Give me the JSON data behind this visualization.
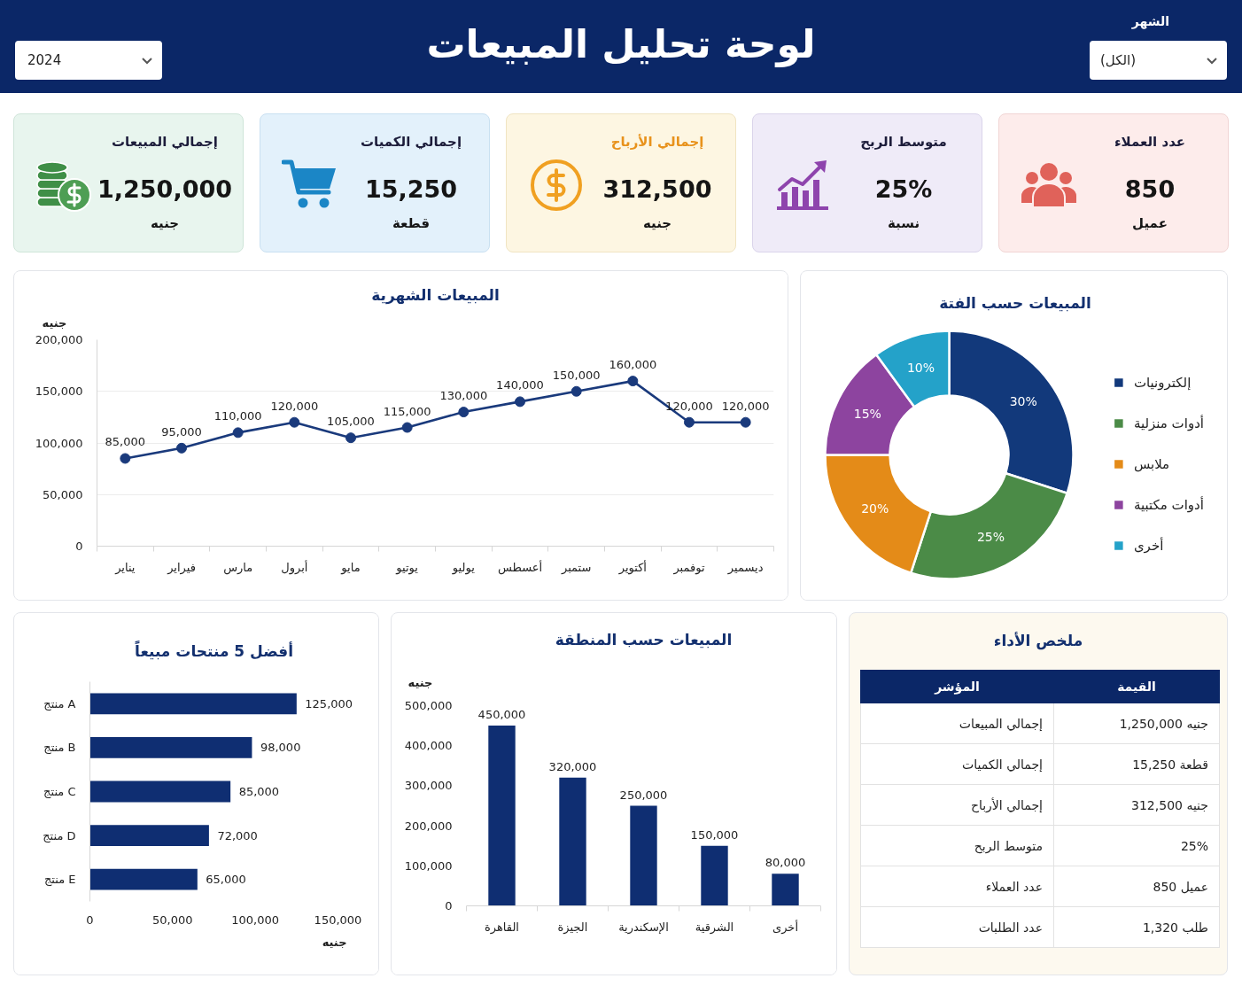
{
  "chart_data": [
    {
      "type": "other",
      "title": "لوحة تحليل المبيعات",
      "annotations": [
        "الشهر",
        "(الكل)",
        "2024"
      ]
    },
    {
      "type": "other",
      "title": "عدد العملاء",
      "annotations": [
        "850",
        "عميل"
      ]
    },
    {
      "type": "other",
      "title": "متوسط الربح",
      "annotations": [
        "25%",
        "نسبة"
      ]
    },
    {
      "type": "other",
      "title": "إجمالي الأرباح",
      "annotations": [
        "312,500",
        "جنيه"
      ]
    },
    {
      "type": "other",
      "title": "إجمالي الكميات",
      "annotations": [
        "15,250",
        "قطعة"
      ]
    },
    {
      "type": "other",
      "title": "إجمالي المبيعات",
      "annotations": [
        "1,250,000",
        "جنيه"
      ]
    },
    {
      "type": "donut",
      "title": "المبيعات حسب الفتة",
      "categories": [
        "إلكترونيات",
        "أدوات منزلية",
        "ملابس",
        "أدوات مكتبية",
        "أخرى"
      ],
      "values": [
        30,
        25,
        20,
        15,
        10
      ],
      "colors": [
        "#12397b",
        "#4b8b47",
        "#e48b18",
        "#8d449f",
        "#24a2c9"
      ],
      "value_labels": [
        "30%",
        "25%",
        "20%",
        "15%",
        "10%"
      ],
      "legend": "right"
    },
    {
      "type": "line",
      "title": "المبيعات الشهرية",
      "ylabel": "جنيه",
      "categories": [
        "يناير",
        "فيراير",
        "مارس",
        "أبرول",
        "مايو",
        "يوتيو",
        "يوليو",
        "أعسطس",
        "ستمبر",
        "أكتوير",
        "توفمبر",
        "ديسمير"
      ],
      "values": [
        85000,
        95000,
        110000,
        120000,
        105000,
        115000,
        130000,
        140000,
        150000,
        160000,
        120000,
        120000
      ],
      "color": "#1a3a7c",
      "value_labels": [
        "85,000",
        "95,000",
        "110,000",
        "120,000",
        "105,000",
        "115,000",
        "130,000",
        "140,000",
        "150,000",
        "160,000",
        "120,000",
        "120,000"
      ],
      "ylim": [
        0,
        200000
      ],
      "yticks": [
        0,
        {
          "value": 50000,
          "label": "50,000"
        },
        {
          "value": 100000,
          "label": "100,000"
        },
        {
          "value": 150000,
          "label": "150,000"
        },
        {
          "value": 200000,
          "label": "200,000"
        }
      ],
      "grid": "y",
      "marker": "circle"
    },
    {
      "type": "other",
      "title": "ملخص الأداء",
      "annotations": [
        "المؤشر",
        "القيمة",
        "إجمالي المبيعات",
        "1,250,000 جنيه",
        "إجمالي الكميات",
        "15,250 قطعة",
        "إجمالي الأرباح",
        "312,500 جنيه",
        "متوسط الربح",
        "25%",
        "عدد العملاء",
        "850 عميل",
        "عدد الطلبات",
        "1,320 طلب"
      ]
    },
    {
      "type": "bar",
      "title": "المبيعات حسب المنطقة",
      "ylabel": "جنيه",
      "categories": [
        "القاهرة",
        "الجيزة",
        "الإسكندرية",
        "الشرقية",
        "أخرى"
      ],
      "values": [
        450000,
        320000,
        250000,
        150000,
        80000
      ],
      "color": "#0f2e72",
      "value_labels": [
        "450,000",
        "320,000",
        "250,000",
        "150,000",
        "80,000"
      ],
      "ylim": [
        0,
        500000
      ],
      "yticks": [
        0,
        {
          "value": 100000,
          "label": "100,000"
        },
        {
          "value": 200000,
          "label": "200,000"
        },
        {
          "value": 300000,
          "label": "300,000"
        },
        {
          "value": 400000,
          "label": "400,000"
        },
        {
          "value": 500000,
          "label": "500,000"
        }
      ]
    },
    {
      "type": "bar",
      "orientation": "horizontal",
      "title": "أفضل 5 منتحات مبيعاً",
      "xlabel": "جنيه",
      "categories": [
        "منتج A",
        "منتج B",
        "منتج C",
        "منتج D",
        "منتج E"
      ],
      "values": [
        125000,
        98000,
        85000,
        72000,
        65000
      ],
      "color": "#0f2e72",
      "value_labels": [
        "125,000",
        "98,000",
        "85,000",
        "72,000",
        "65,000"
      ],
      "xlim": [
        0,
        150000
      ],
      "xticks": [
        0,
        {
          "value": 50000,
          "label": "50,000"
        },
        {
          "value": 100000,
          "label": "100,000"
        },
        {
          "value": 150000,
          "label": "150,000"
        }
      ]
    }
  ]
}
